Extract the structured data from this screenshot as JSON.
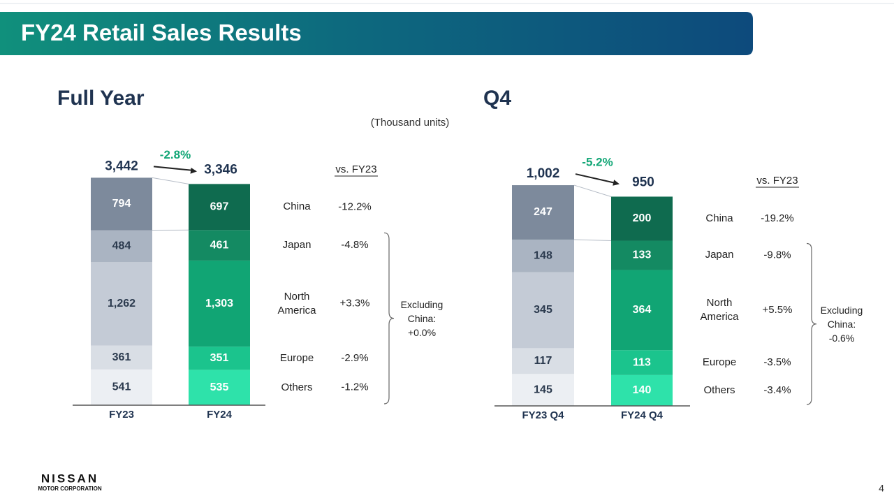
{
  "title": "FY24 Retail Sales Results",
  "unit_note": "(Thousand units)",
  "logo": {
    "name": "NISSAN",
    "sub": "MOTOR CORPORATION"
  },
  "page_number": "4",
  "chart_data": [
    {
      "type": "stacked_bar",
      "title": "Full Year",
      "categories": [
        "FY23",
        "FY24"
      ],
      "totals": [
        3442,
        3346
      ],
      "total_labels": [
        "3,442",
        "3,346"
      ],
      "total_change": -2.8,
      "total_change_label": "-2.8%",
      "comparison_label": "vs. FY23",
      "bracket_label": "Excluding China: +0.0%",
      "series": [
        {
          "name": "China",
          "values": [
            794,
            697
          ],
          "value_labels": [
            "794",
            "697"
          ],
          "colors": [
            "#7d8a9c",
            "#0f6b4f"
          ],
          "label_colors": [
            "#ffffff",
            "#ffffff"
          ],
          "change": -12.2,
          "change_label": "-12.2%"
        },
        {
          "name": "Japan",
          "values": [
            484,
            461
          ],
          "value_labels": [
            "484",
            "461"
          ],
          "colors": [
            "#aab4c2",
            "#148a62"
          ],
          "label_colors": [
            "#2b3a4e",
            "#ffffff"
          ],
          "change": -4.8,
          "change_label": "-4.8%"
        },
        {
          "name": "North America",
          "values": [
            1262,
            1303
          ],
          "value_labels": [
            "1,262",
            "1,303"
          ],
          "colors": [
            "#c4cbd6",
            "#11a574"
          ],
          "label_colors": [
            "#2b3a4e",
            "#ffffff"
          ],
          "change": 3.3,
          "change_label": "+3.3%"
        },
        {
          "name": "Europe",
          "values": [
            361,
            351
          ],
          "value_labels": [
            "361",
            "351"
          ],
          "colors": [
            "#d9dee5",
            "#1bc48d"
          ],
          "label_colors": [
            "#2b3a4e",
            "#ffffff"
          ],
          "change": -2.9,
          "change_label": "-2.9%"
        },
        {
          "name": "Others",
          "values": [
            541,
            535
          ],
          "value_labels": [
            "541",
            "535"
          ],
          "colors": [
            "#eceff3",
            "#2ee2aa"
          ],
          "label_colors": [
            "#2b3a4e",
            "#ffffff"
          ],
          "change": -1.2,
          "change_label": "-1.2%"
        }
      ]
    },
    {
      "type": "stacked_bar",
      "title": "Q4",
      "categories": [
        "FY23 Q4",
        "FY24 Q4"
      ],
      "totals": [
        1002,
        950
      ],
      "total_labels": [
        "1,002",
        "950"
      ],
      "total_change": -5.2,
      "total_change_label": "-5.2%",
      "comparison_label": "vs. FY23",
      "bracket_label": "Excluding China: -0.6%",
      "series": [
        {
          "name": "China",
          "values": [
            247,
            200
          ],
          "value_labels": [
            "247",
            "200"
          ],
          "colors": [
            "#7d8a9c",
            "#0f6b4f"
          ],
          "label_colors": [
            "#ffffff",
            "#ffffff"
          ],
          "change": -19.2,
          "change_label": "-19.2%"
        },
        {
          "name": "Japan",
          "values": [
            148,
            133
          ],
          "value_labels": [
            "148",
            "133"
          ],
          "colors": [
            "#aab4c2",
            "#148a62"
          ],
          "label_colors": [
            "#2b3a4e",
            "#ffffff"
          ],
          "change": -9.8,
          "change_label": "-9.8%"
        },
        {
          "name": "North America",
          "values": [
            345,
            364
          ],
          "value_labels": [
            "345",
            "364"
          ],
          "colors": [
            "#c4cbd6",
            "#11a574"
          ],
          "label_colors": [
            "#2b3a4e",
            "#ffffff"
          ],
          "change": 5.5,
          "change_label": "+5.5%"
        },
        {
          "name": "Europe",
          "values": [
            117,
            113
          ],
          "value_labels": [
            "117",
            "113"
          ],
          "colors": [
            "#d9dee5",
            "#1bc48d"
          ],
          "label_colors": [
            "#2b3a4e",
            "#ffffff"
          ],
          "change": -3.5,
          "change_label": "-3.5%"
        },
        {
          "name": "Others",
          "values": [
            145,
            140
          ],
          "value_labels": [
            "145",
            "140"
          ],
          "colors": [
            "#eceff3",
            "#2ee2aa"
          ],
          "label_colors": [
            "#2b3a4e",
            "#ffffff"
          ],
          "change": -3.4,
          "change_label": "-3.4%"
        }
      ]
    }
  ]
}
